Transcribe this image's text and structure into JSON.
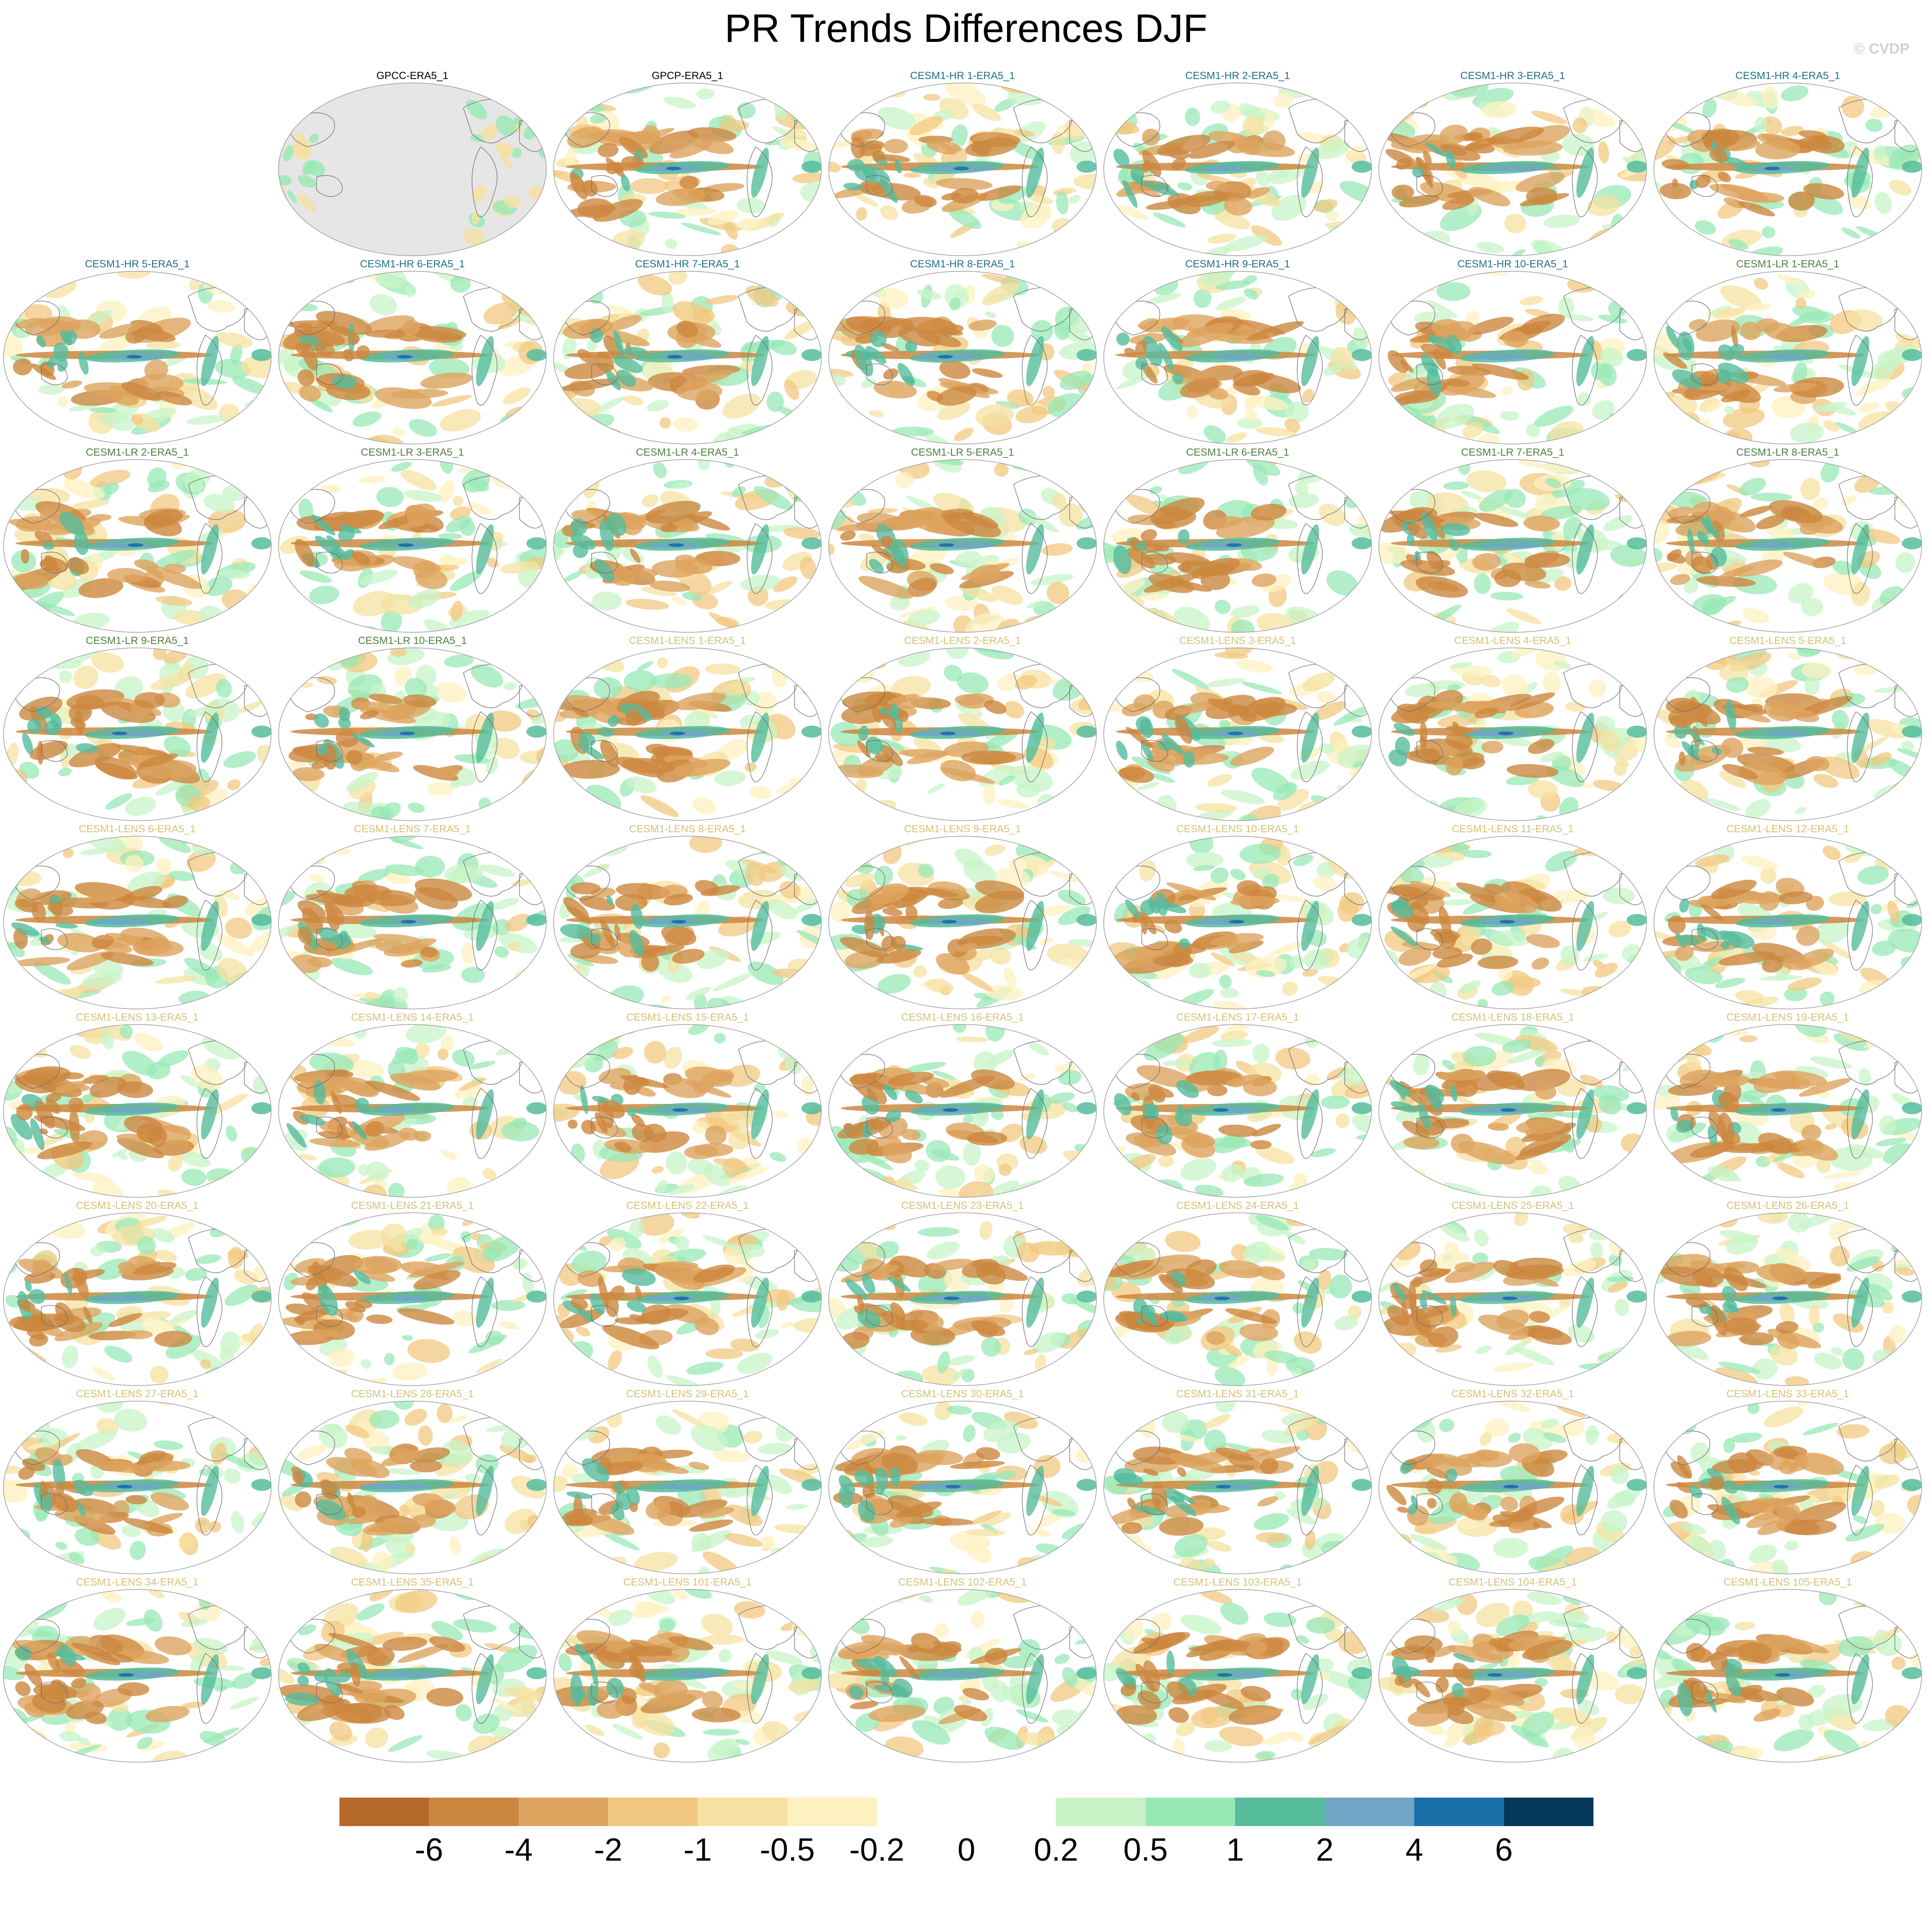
{
  "title": "PR Trends Differences DJF",
  "watermark": "© CVDP",
  "colors": {
    "obs_title": "#000000",
    "cesm1_hr_title": "#1f6f8b",
    "cesm1_lr_title": "#4f7f3f",
    "cesm1_lens_title": "#d4c278",
    "land_mask": "#e6e6e6",
    "coast": "#6e6e6e"
  },
  "panels": [
    {
      "title": "GPCC-ERA5_1",
      "group": "obs",
      "land_masked": true
    },
    {
      "title": "GPCP-ERA5_1",
      "group": "obs"
    },
    {
      "title": "CESM1-HR 1-ERA5_1",
      "group": "hr"
    },
    {
      "title": "CESM1-HR 2-ERA5_1",
      "group": "hr"
    },
    {
      "title": "CESM1-HR 3-ERA5_1",
      "group": "hr"
    },
    {
      "title": "CESM1-HR 4-ERA5_1",
      "group": "hr"
    },
    {
      "title": "CESM1-HR 5-ERA5_1",
      "group": "hr"
    },
    {
      "title": "CESM1-HR 6-ERA5_1",
      "group": "hr"
    },
    {
      "title": "CESM1-HR 7-ERA5_1",
      "group": "hr"
    },
    {
      "title": "CESM1-HR 8-ERA5_1",
      "group": "hr"
    },
    {
      "title": "CESM1-HR 9-ERA5_1",
      "group": "hr"
    },
    {
      "title": "CESM1-HR 10-ERA5_1",
      "group": "hr"
    },
    {
      "title": "CESM1-LR 1-ERA5_1",
      "group": "lr"
    },
    {
      "title": "CESM1-LR 2-ERA5_1",
      "group": "lr"
    },
    {
      "title": "CESM1-LR 3-ERA5_1",
      "group": "lr"
    },
    {
      "title": "CESM1-LR 4-ERA5_1",
      "group": "lr"
    },
    {
      "title": "CESM1-LR 5-ERA5_1",
      "group": "lr"
    },
    {
      "title": "CESM1-LR 6-ERA5_1",
      "group": "lr"
    },
    {
      "title": "CESM1-LR 7-ERA5_1",
      "group": "lr"
    },
    {
      "title": "CESM1-LR 8-ERA5_1",
      "group": "lr"
    },
    {
      "title": "CESM1-LR 9-ERA5_1",
      "group": "lr"
    },
    {
      "title": "CESM1-LR 10-ERA5_1",
      "group": "lr"
    },
    {
      "title": "CESM1-LENS 1-ERA5_1",
      "group": "lens"
    },
    {
      "title": "CESM1-LENS 2-ERA5_1",
      "group": "lens"
    },
    {
      "title": "CESM1-LENS 3-ERA5_1",
      "group": "lens"
    },
    {
      "title": "CESM1-LENS 4-ERA5_1",
      "group": "lens"
    },
    {
      "title": "CESM1-LENS 5-ERA5_1",
      "group": "lens"
    },
    {
      "title": "CESM1-LENS 6-ERA5_1",
      "group": "lens"
    },
    {
      "title": "CESM1-LENS 7-ERA5_1",
      "group": "lens"
    },
    {
      "title": "CESM1-LENS 8-ERA5_1",
      "group": "lens"
    },
    {
      "title": "CESM1-LENS 9-ERA5_1",
      "group": "lens"
    },
    {
      "title": "CESM1-LENS 10-ERA5_1",
      "group": "lens"
    },
    {
      "title": "CESM1-LENS 11-ERA5_1",
      "group": "lens"
    },
    {
      "title": "CESM1-LENS 12-ERA5_1",
      "group": "lens"
    },
    {
      "title": "CESM1-LENS 13-ERA5_1",
      "group": "lens"
    },
    {
      "title": "CESM1-LENS 14-ERA5_1",
      "group": "lens"
    },
    {
      "title": "CESM1-LENS 15-ERA5_1",
      "group": "lens"
    },
    {
      "title": "CESM1-LENS 16-ERA5_1",
      "group": "lens"
    },
    {
      "title": "CESM1-LENS 17-ERA5_1",
      "group": "lens"
    },
    {
      "title": "CESM1-LENS 18-ERA5_1",
      "group": "lens"
    },
    {
      "title": "CESM1-LENS 19-ERA5_1",
      "group": "lens"
    },
    {
      "title": "CESM1-LENS 20-ERA5_1",
      "group": "lens"
    },
    {
      "title": "CESM1-LENS 21-ERA5_1",
      "group": "lens"
    },
    {
      "title": "CESM1-LENS 22-ERA5_1",
      "group": "lens"
    },
    {
      "title": "CESM1-LENS 23-ERA5_1",
      "group": "lens"
    },
    {
      "title": "CESM1-LENS 24-ERA5_1",
      "group": "lens"
    },
    {
      "title": "CESM1-LENS 25-ERA5_1",
      "group": "lens"
    },
    {
      "title": "CESM1-LENS 26-ERA5_1",
      "group": "lens"
    },
    {
      "title": "CESM1-LENS 27-ERA5_1",
      "group": "lens"
    },
    {
      "title": "CESM1-LENS 28-ERA5_1",
      "group": "lens"
    },
    {
      "title": "CESM1-LENS 29-ERA5_1",
      "group": "lens"
    },
    {
      "title": "CESM1-LENS 30-ERA5_1",
      "group": "lens"
    },
    {
      "title": "CESM1-LENS 31-ERA5_1",
      "group": "lens"
    },
    {
      "title": "CESM1-LENS 32-ERA5_1",
      "group": "lens"
    },
    {
      "title": "CESM1-LENS 33-ERA5_1",
      "group": "lens"
    },
    {
      "title": "CESM1-LENS 34-ERA5_1",
      "group": "lens"
    },
    {
      "title": "CESM1-LENS 35-ERA5_1",
      "group": "lens"
    },
    {
      "title": "CESM1-LENS 101-ERA5_1",
      "group": "lens"
    },
    {
      "title": "CESM1-LENS 102-ERA5_1",
      "group": "lens"
    },
    {
      "title": "CESM1-LENS 103-ERA5_1",
      "group": "lens"
    },
    {
      "title": "CESM1-LENS 104-ERA5_1",
      "group": "lens"
    },
    {
      "title": "CESM1-LENS 105-ERA5_1",
      "group": "lens"
    }
  ],
  "colorbar": {
    "colors": [
      "#b5692b",
      "#cc873f",
      "#dda45f",
      "#f2c880",
      "#f6e1a2",
      "#fdf1c0",
      "#ffffff",
      "#ffffff",
      "#c8f4c8",
      "#98e8b5",
      "#55bc9c",
      "#70a7c6",
      "#1b6fa9",
      "#033858"
    ],
    "labels": [
      "-6",
      "-4",
      "-2",
      "-1",
      "-0.5",
      "-0.2",
      "0",
      "0.2",
      "0.5",
      "1",
      "2",
      "4",
      "6"
    ]
  }
}
